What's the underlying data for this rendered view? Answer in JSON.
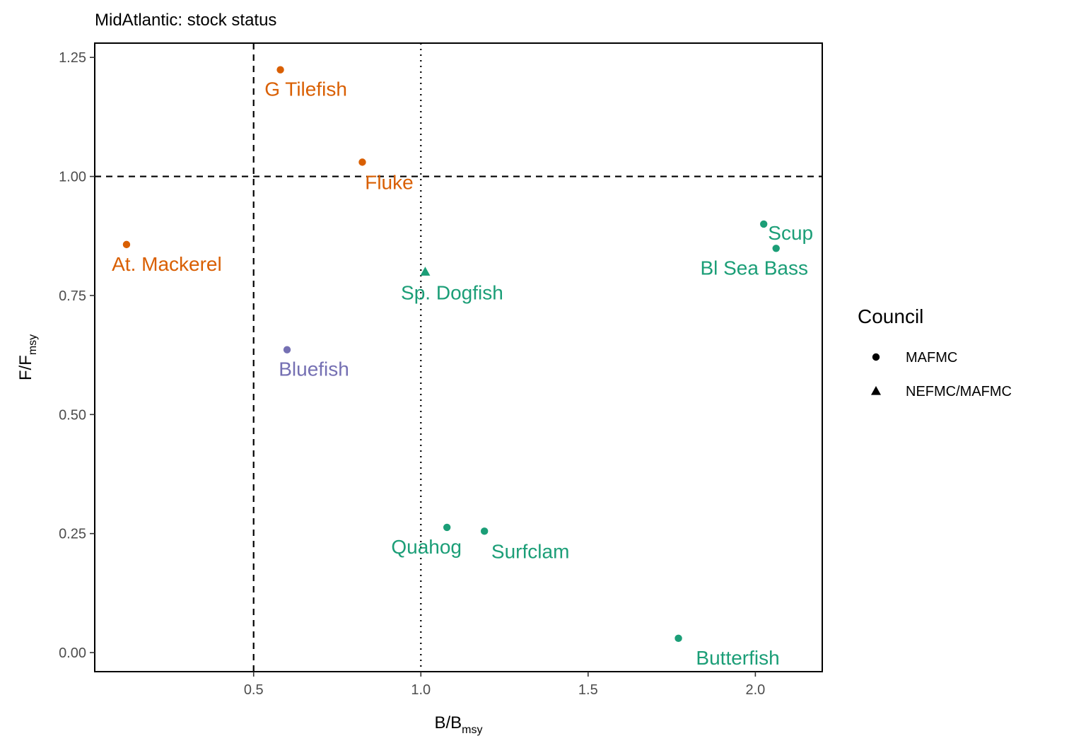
{
  "chart_data": {
    "type": "scatter",
    "title": "MidAtlantic: stock status",
    "xlabel": {
      "main": "B/B",
      "sub": "msy"
    },
    "ylabel": {
      "main": "F/F",
      "sub": "msy"
    },
    "xlim": [
      0.025,
      2.2
    ],
    "ylim": [
      -0.04,
      1.28
    ],
    "xticks": [
      0.5,
      1.0,
      1.5,
      2.0
    ],
    "xtick_labels": [
      "0.5",
      "1.0",
      "1.5",
      "2.0"
    ],
    "yticks": [
      0.0,
      0.25,
      0.5,
      0.75,
      1.0,
      1.25
    ],
    "ytick_labels": [
      "0.00",
      "0.25",
      "0.50",
      "0.75",
      "1.00",
      "1.25"
    ],
    "grid": false,
    "reference_lines": [
      {
        "axis": "x",
        "value": 0.5,
        "style": "dashed"
      },
      {
        "axis": "x",
        "value": 1.0,
        "style": "dotted"
      },
      {
        "axis": "y",
        "value": 1.0,
        "style": "dashed"
      }
    ],
    "colors": {
      "orange": "#d95f02",
      "purple": "#7570b3",
      "green": "#1b9e77"
    },
    "points": [
      {
        "label": "G Tilefish",
        "x": 0.58,
        "y": 1.224,
        "shape": "circle",
        "color": "#d95f02"
      },
      {
        "label": "Fluke",
        "x": 0.825,
        "y": 1.03,
        "shape": "circle",
        "color": "#d95f02"
      },
      {
        "label": "At. Mackerel",
        "x": 0.12,
        "y": 0.857,
        "shape": "circle",
        "color": "#d95f02"
      },
      {
        "label": "Bluefish",
        "x": 0.6,
        "y": 0.636,
        "shape": "circle",
        "color": "#7570b3"
      },
      {
        "label": "Sp. Dogfish",
        "x": 1.013,
        "y": 0.8,
        "shape": "triangle",
        "color": "#1b9e77"
      },
      {
        "label": "Scup",
        "x": 2.025,
        "y": 0.9,
        "shape": "circle",
        "color": "#1b9e77"
      },
      {
        "label": "Bl Sea Bass",
        "x": 2.062,
        "y": 0.849,
        "shape": "circle",
        "color": "#1b9e77"
      },
      {
        "label": "Quahog",
        "x": 1.078,
        "y": 0.263,
        "shape": "circle",
        "color": "#1b9e77"
      },
      {
        "label": "Surfclam",
        "x": 1.19,
        "y": 0.255,
        "shape": "circle",
        "color": "#1b9e77"
      },
      {
        "label": "Butterfish",
        "x": 1.77,
        "y": 0.03,
        "shape": "circle",
        "color": "#1b9e77"
      }
    ],
    "legend": {
      "title": "Council",
      "position": "right",
      "entries": [
        {
          "label": "MAFMC",
          "shape": "circle"
        },
        {
          "label": "NEFMC/MAFMC",
          "shape": "triangle"
        }
      ]
    }
  }
}
